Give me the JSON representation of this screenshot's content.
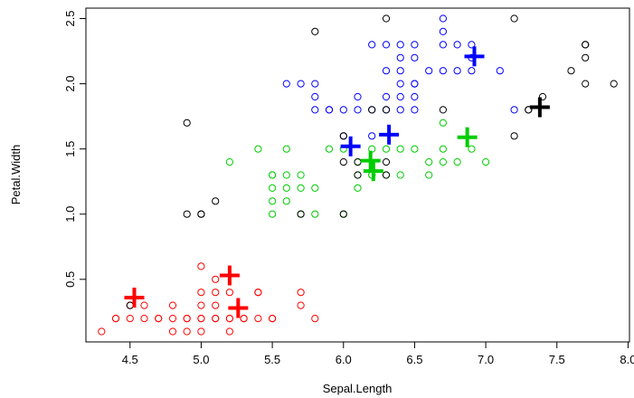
{
  "chart_data": {
    "type": "scatter",
    "xlabel": "Sepal.Length",
    "ylabel": "Petal.Width",
    "xlim": [
      4.19,
      8.01
    ],
    "ylim": [
      0.02,
      2.58
    ],
    "x_ticks": [
      "4.5",
      "5.0",
      "5.5",
      "6.0",
      "6.5",
      "7.0",
      "7.5",
      "8.0"
    ],
    "y_ticks": [
      "0.5",
      "1.0",
      "1.5",
      "2.0",
      "2.5"
    ],
    "grid": false,
    "series": [
      {
        "color": "#ff0000",
        "points": [
          [
            4.3,
            0.1
          ],
          [
            4.4,
            0.2
          ],
          [
            4.4,
            0.2
          ],
          [
            4.6,
            0.2
          ],
          [
            4.7,
            0.2
          ],
          [
            4.8,
            0.2
          ],
          [
            4.8,
            0.1
          ],
          [
            4.9,
            0.2
          ],
          [
            4.9,
            0.1
          ],
          [
            5.0,
            0.2
          ],
          [
            5.0,
            0.3
          ],
          [
            5.0,
            0.4
          ],
          [
            5.0,
            0.6
          ],
          [
            5.1,
            0.2
          ],
          [
            5.1,
            0.3
          ],
          [
            5.1,
            0.4
          ],
          [
            5.1,
            0.5
          ],
          [
            5.2,
            0.2
          ],
          [
            5.2,
            0.1
          ],
          [
            5.3,
            0.2
          ],
          [
            5.4,
            0.2
          ],
          [
            5.4,
            0.4
          ],
          [
            5.5,
            0.2
          ],
          [
            5.7,
            0.3
          ],
          [
            5.7,
            0.4
          ],
          [
            5.8,
            0.2
          ],
          [
            4.5,
            0.3
          ],
          [
            4.6,
            0.3
          ],
          [
            4.8,
            0.3
          ],
          [
            4.9,
            0.2
          ],
          [
            5.0,
            0.1
          ],
          [
            5.2,
            0.2
          ],
          [
            5.4,
            0.4
          ],
          [
            4.5,
            0.2
          ],
          [
            4.7,
            0.2
          ],
          [
            5.0,
            0.2
          ],
          [
            5.1,
            0.2
          ],
          [
            5.3,
            0.2
          ],
          [
            5.5,
            0.2
          ],
          [
            5.2,
            0.4
          ]
        ]
      },
      {
        "color": "#00cd00",
        "points": [
          [
            5.5,
            1.3
          ],
          [
            5.5,
            1.2
          ],
          [
            5.5,
            1.1
          ],
          [
            5.5,
            1.0
          ],
          [
            5.6,
            1.3
          ],
          [
            5.6,
            1.1
          ],
          [
            5.6,
            1.2
          ],
          [
            5.7,
            1.3
          ],
          [
            5.7,
            1.2
          ],
          [
            5.7,
            1.0
          ],
          [
            5.8,
            1.2
          ],
          [
            5.8,
            1.0
          ],
          [
            5.4,
            1.5
          ],
          [
            5.6,
            1.5
          ],
          [
            5.2,
            1.4
          ],
          [
            5.9,
            1.5
          ],
          [
            6.0,
            1.0
          ],
          [
            6.1,
            1.4
          ],
          [
            6.1,
            1.3
          ],
          [
            6.1,
            1.2
          ],
          [
            6.2,
            1.3
          ],
          [
            6.2,
            1.5
          ],
          [
            6.3,
            1.3
          ],
          [
            6.3,
            1.5
          ],
          [
            6.4,
            1.5
          ],
          [
            6.5,
            1.5
          ],
          [
            6.6,
            1.4
          ],
          [
            6.6,
            1.3
          ],
          [
            6.7,
            1.4
          ],
          [
            6.7,
            1.5
          ],
          [
            6.7,
            1.7
          ],
          [
            6.8,
            1.4
          ],
          [
            6.9,
            1.5
          ],
          [
            7.0,
            1.4
          ],
          [
            6.0,
            1.5
          ],
          [
            6.4,
            1.3
          ],
          [
            5.5,
            1.3
          ],
          [
            6.2,
            1.3
          ]
        ]
      },
      {
        "color": "#0000ff",
        "points": [
          [
            5.6,
            2.0
          ],
          [
            5.7,
            2.0
          ],
          [
            5.8,
            1.9
          ],
          [
            5.8,
            1.8
          ],
          [
            5.9,
            1.8
          ],
          [
            6.0,
            1.8
          ],
          [
            6.1,
            1.8
          ],
          [
            6.2,
            1.8
          ],
          [
            6.3,
            1.8
          ],
          [
            6.4,
            1.8
          ],
          [
            6.5,
            1.8
          ],
          [
            6.3,
            1.9
          ],
          [
            6.4,
            1.9
          ],
          [
            6.5,
            2.0
          ],
          [
            6.4,
            2.1
          ],
          [
            6.5,
            2.2
          ],
          [
            6.4,
            2.2
          ],
          [
            6.3,
            2.3
          ],
          [
            6.5,
            2.3
          ],
          [
            6.4,
            2.3
          ],
          [
            6.7,
            2.5
          ],
          [
            6.7,
            2.1
          ],
          [
            6.7,
            2.3
          ],
          [
            6.7,
            2.4
          ],
          [
            6.8,
            2.1
          ],
          [
            6.8,
            2.3
          ],
          [
            6.9,
            2.1
          ],
          [
            6.9,
            2.3
          ],
          [
            7.1,
            2.1
          ],
          [
            7.2,
            1.8
          ],
          [
            6.1,
            1.9
          ],
          [
            6.3,
            2.1
          ],
          [
            6.0,
            1.6
          ],
          [
            6.2,
            1.6
          ],
          [
            6.5,
            1.9
          ],
          [
            6.6,
            2.1
          ],
          [
            6.4,
            2.0
          ],
          [
            6.5,
            2.0
          ],
          [
            6.9,
            2.2
          ],
          [
            5.9,
            1.8
          ],
          [
            6.2,
            2.3
          ],
          [
            5.8,
            2.0
          ]
        ]
      },
      {
        "color": "#000000",
        "points": [
          [
            6.3,
            2.5
          ],
          [
            7.2,
            2.5
          ],
          [
            5.8,
            2.4
          ],
          [
            7.7,
            2.3
          ],
          [
            7.7,
            2.3
          ],
          [
            7.7,
            2.2
          ],
          [
            7.6,
            2.1
          ],
          [
            7.7,
            2.0
          ],
          [
            7.9,
            2.0
          ],
          [
            7.4,
            1.9
          ],
          [
            7.3,
            1.8
          ],
          [
            7.2,
            1.6
          ],
          [
            6.7,
            1.8
          ],
          [
            6.3,
            1.8
          ],
          [
            6.1,
            1.4
          ],
          [
            6.1,
            1.3
          ],
          [
            6.3,
            1.3
          ],
          [
            6.0,
            1.6
          ],
          [
            6.0,
            1.4
          ],
          [
            4.9,
            1.7
          ],
          [
            4.9,
            1.0
          ],
          [
            5.0,
            1.0
          ],
          [
            5.1,
            1.1
          ],
          [
            5.7,
            1.0
          ],
          [
            6.0,
            1.0
          ],
          [
            5.0,
            1.0
          ],
          [
            4.5,
            0.3
          ],
          [
            6.2,
            1.8
          ],
          [
            7.3,
            1.8
          ],
          [
            6.3,
            1.4
          ]
        ]
      }
    ],
    "centroids": [
      {
        "color": "#ff0000",
        "points": [
          [
            4.53,
            0.36
          ],
          [
            5.2,
            0.53
          ],
          [
            5.26,
            0.28
          ]
        ]
      },
      {
        "color": "#00cd00",
        "points": [
          [
            6.19,
            1.41
          ],
          [
            6.21,
            1.33
          ],
          [
            6.87,
            1.59
          ]
        ]
      },
      {
        "color": "#0000ff",
        "points": [
          [
            6.05,
            1.52
          ],
          [
            6.32,
            1.61
          ],
          [
            6.92,
            2.21
          ]
        ]
      },
      {
        "color": "#000000",
        "points": [
          [
            7.38,
            1.82
          ]
        ]
      }
    ]
  }
}
